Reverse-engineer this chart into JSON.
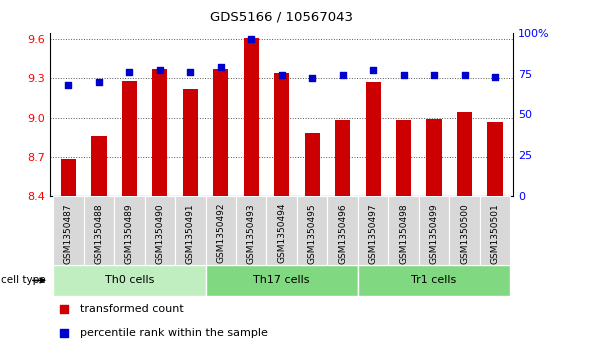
{
  "title": "GDS5166 / 10567043",
  "samples": [
    "GSM1350487",
    "GSM1350488",
    "GSM1350489",
    "GSM1350490",
    "GSM1350491",
    "GSM1350492",
    "GSM1350493",
    "GSM1350494",
    "GSM1350495",
    "GSM1350496",
    "GSM1350497",
    "GSM1350498",
    "GSM1350499",
    "GSM1350500",
    "GSM1350501"
  ],
  "bar_values": [
    8.68,
    8.86,
    9.28,
    9.37,
    9.22,
    9.37,
    9.61,
    9.34,
    8.88,
    8.98,
    9.27,
    8.98,
    8.99,
    9.04,
    8.97
  ],
  "percentile_values": [
    68,
    70,
    76,
    77,
    76,
    79,
    96,
    74,
    72,
    74,
    77,
    74,
    74,
    74,
    73
  ],
  "bar_color": "#cc0000",
  "percentile_color": "#0000cc",
  "ylim_left": [
    8.4,
    9.65
  ],
  "ylim_right": [
    0,
    100
  ],
  "yticks_left": [
    8.4,
    8.7,
    9.0,
    9.3,
    9.6
  ],
  "yticks_right": [
    0,
    25,
    50,
    75,
    100
  ],
  "ytick_labels_right": [
    "0",
    "25",
    "50",
    "75",
    "100%"
  ],
  "groups": [
    {
      "label": "Th0 cells",
      "start": 0,
      "end": 4,
      "color": "#c0eec0"
    },
    {
      "label": "Th17 cells",
      "start": 5,
      "end": 9,
      "color": "#80d880"
    },
    {
      "label": "Tr1 cells",
      "start": 10,
      "end": 14,
      "color": "#80d880"
    }
  ],
  "cell_type_label": "cell type",
  "legend_items": [
    {
      "label": "transformed count",
      "color": "#cc0000"
    },
    {
      "label": "percentile rank within the sample",
      "color": "#0000cc"
    }
  ],
  "plot_bg_color": "#ffffff",
  "grid_color": "#555555",
  "bar_width": 0.5,
  "xtick_bg_color": "#d8d8d8"
}
